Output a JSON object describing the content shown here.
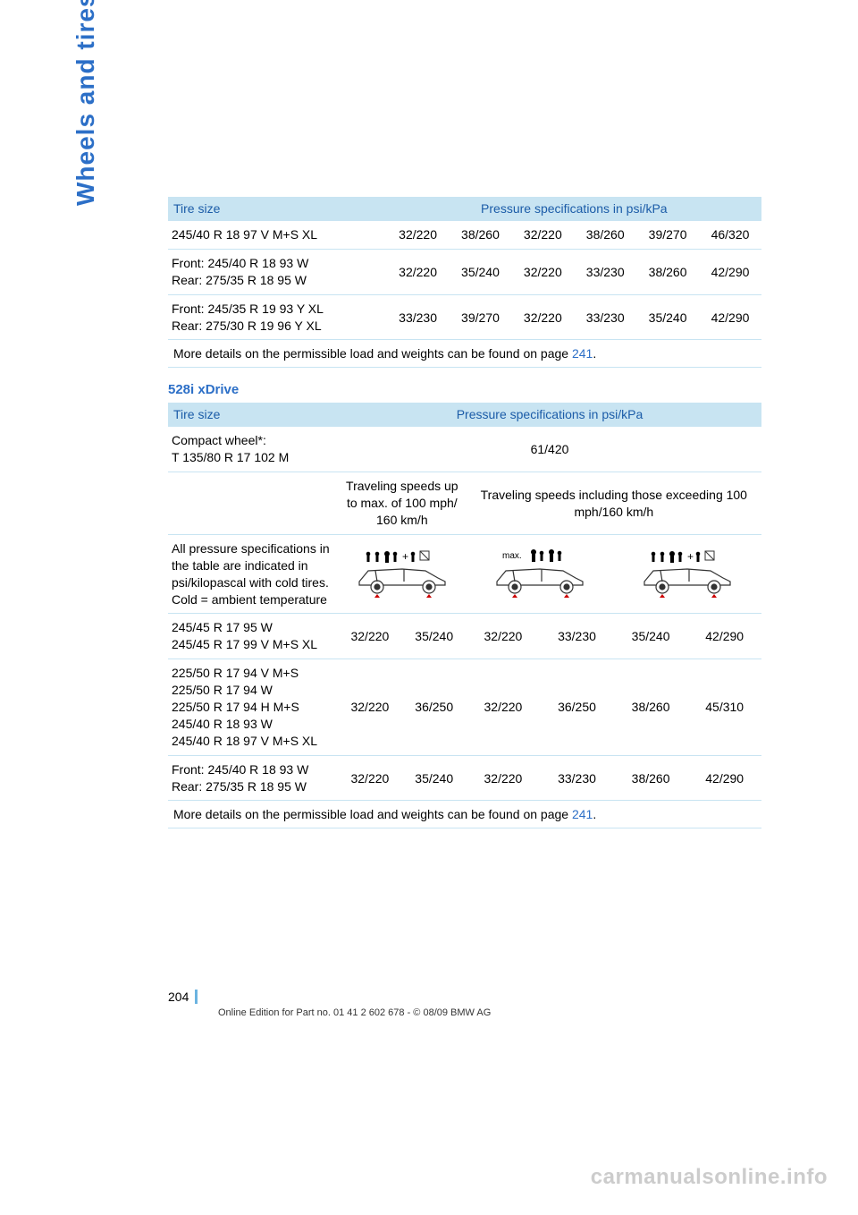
{
  "sidebar_label": "Wheels and tires",
  "colors": {
    "accent": "#2c6fc7",
    "header_bg": "#c8e4f2",
    "row_border": "#c8e4f2",
    "watermark": "#cccccc",
    "footer_bar": "#6bb3e0"
  },
  "table1": {
    "header": {
      "size": "Tire size",
      "spec": "Pressure specifications in psi/kPa"
    },
    "rows": [
      {
        "size": "245/40 R 18 97 V M+S XL",
        "v": [
          "32/220",
          "38/260",
          "32/220",
          "38/260",
          "39/270",
          "46/320"
        ]
      },
      {
        "size": "Front: 245/40 R 18 93 W\nRear: 275/35 R 18 95 W",
        "v": [
          "32/220",
          "35/240",
          "32/220",
          "33/230",
          "38/260",
          "42/290"
        ]
      },
      {
        "size": "Front: 245/35 R 19 93 Y XL\nRear: 275/30 R 19 96 Y XL",
        "v": [
          "33/230",
          "39/270",
          "32/220",
          "33/230",
          "35/240",
          "42/290"
        ]
      }
    ],
    "footnote": {
      "pre": "More details on the permissible load and weights can be found on page ",
      "page": "241",
      "post": "."
    }
  },
  "section_title": "528i xDrive",
  "table2": {
    "header": {
      "size": "Tire size",
      "spec": "Pressure specifications in psi/kPa"
    },
    "compact": {
      "label": "Compact wheel*:\nT 135/80 R 17 102 M",
      "value": "61/420"
    },
    "speed_headers": {
      "low": "Traveling speeds up to max. of 100 mph/ 160 km/h",
      "high": "Traveling speeds including those exceeding 100 mph/160 km/h"
    },
    "note": "All pressure specifications in the table are indicated in psi/kilopascal with cold tires.\nCold = ambient temperature",
    "rows": [
      {
        "size": "245/45 R 17 95 W\n245/45 R 17 99 V M+S XL",
        "v": [
          "32/220",
          "35/240",
          "32/220",
          "33/230",
          "35/240",
          "42/290"
        ]
      },
      {
        "size": "225/50 R 17 94 V M+S\n225/50 R 17 94 W\n225/50 R 17 94 H M+S\n245/40 R 18 93 W\n245/40 R 18 97 V M+S XL",
        "v": [
          "32/220",
          "36/250",
          "32/220",
          "36/250",
          "38/260",
          "45/310"
        ]
      },
      {
        "size": "Front: 245/40 R 18 93 W\nRear: 275/35 R 18 95 W",
        "v": [
          "32/220",
          "35/240",
          "32/220",
          "33/230",
          "38/260",
          "42/290"
        ]
      }
    ],
    "footnote": {
      "pre": "More details on the permissible load and weights can be found on page ",
      "page": "241",
      "post": "."
    }
  },
  "footer": {
    "page_number": "204",
    "edition": "Online Edition for Part no. 01 41 2 602 678 - © 08/09 BMW AG"
  },
  "watermark": "carmanualsonline.info"
}
